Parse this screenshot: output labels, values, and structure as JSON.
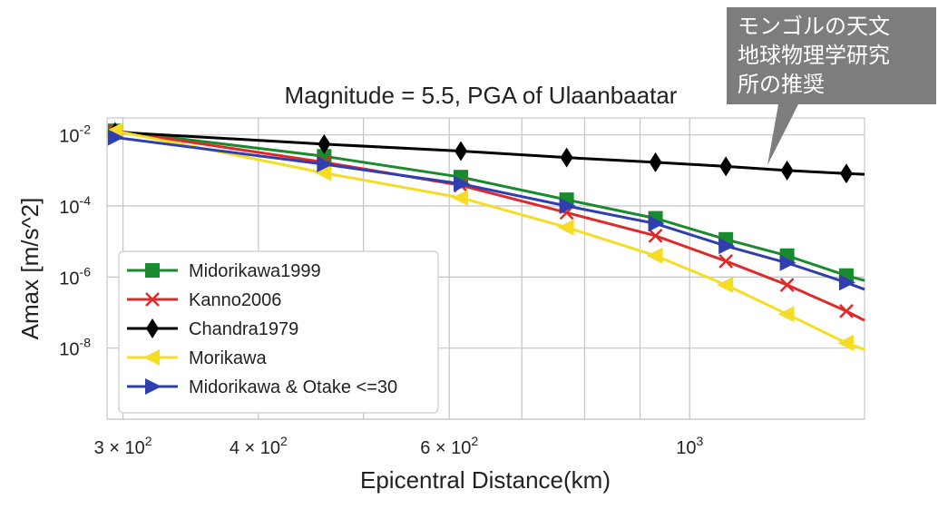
{
  "chart_data": {
    "type": "line",
    "title": "Magnitude = 5.5, PGA of Ulaanbaatar",
    "xlabel": "Epicentral Distance(km)",
    "ylabel": "Amax [m/s^2]",
    "xscale": "log",
    "yscale": "log",
    "xlim": [
      290,
      1450
    ],
    "ylim": [
      1e-10,
      0.03
    ],
    "grid": true,
    "legend_position": "lower-left",
    "x_ticks": [
      {
        "value": 300,
        "mantissa": "3",
        "exp": "2"
      },
      {
        "value": 400,
        "mantissa": "4",
        "exp": "2"
      },
      {
        "value": 600,
        "mantissa": "6",
        "exp": "2"
      },
      {
        "value": 1000,
        "mantissa": "",
        "exp": "3"
      }
    ],
    "x_minor_ticks": [
      500,
      700,
      800,
      900
    ],
    "y_ticks": [
      {
        "value": 0.01,
        "exp": "-2"
      },
      {
        "value": 0.0001,
        "exp": "-4"
      },
      {
        "value": 1e-06,
        "exp": "-6"
      },
      {
        "value": 1e-08,
        "exp": "-8"
      }
    ],
    "y_minor_grid": [
      1e-10
    ],
    "x": [
      295,
      460,
      615,
      770,
      930,
      1080,
      1230,
      1395
    ],
    "series": [
      {
        "name": "Midorikawa1999",
        "color": "#1a8a2e",
        "marker": "square",
        "values": [
          0.013,
          0.0025,
          0.00065,
          0.00015,
          4.5e-05,
          1.15e-05,
          4e-06,
          1.1e-06
        ],
        "end_value": 8e-07
      },
      {
        "name": "Kanno2006",
        "color": "#e02a2a",
        "marker": "x",
        "values": [
          0.013,
          0.0017,
          0.00038,
          6.5e-05,
          1.45e-05,
          2.8e-06,
          6e-07,
          1.1e-07
        ],
        "end_value": 6e-08
      },
      {
        "name": "Chandra1979",
        "color": "#000000",
        "marker": "diamond",
        "values": [
          0.012,
          0.0055,
          0.0035,
          0.0023,
          0.0017,
          0.0013,
          0.001,
          0.00082
        ],
        "end_value": 0.00078
      },
      {
        "name": "Morikawa",
        "color": "#f5dd25",
        "marker": "triangle-left",
        "values": [
          0.013,
          0.00085,
          0.00017,
          2.5e-05,
          4e-06,
          6e-07,
          9e-08,
          1.4e-08
        ],
        "end_value": 9e-09
      },
      {
        "name": "Midorikawa & Otake <=30",
        "color": "#2f3fb0",
        "marker": "triangle-right",
        "values": [
          0.0085,
          0.0015,
          0.00042,
          0.0001,
          3.2e-05,
          7.5e-06,
          2.5e-06,
          7e-07
        ],
        "end_value": 4.5e-07
      }
    ]
  },
  "callout": {
    "lines": [
      "モンゴルの天文",
      "地球物理学研究",
      "所の推奨"
    ],
    "background": "#7d7d7d",
    "text_color": "#ffffff"
  }
}
